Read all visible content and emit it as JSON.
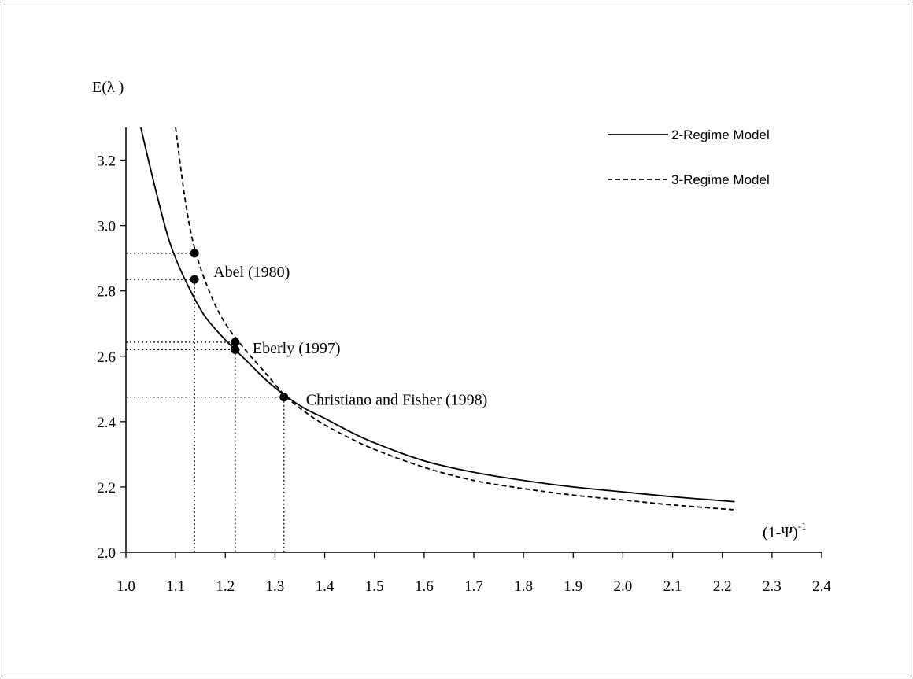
{
  "chart_data": {
    "type": "line",
    "title": "",
    "ylabel": "E(λ )",
    "xlabel_base": "(1-Ψ)",
    "xlabel_exp": "-1",
    "xlim": [
      1.0,
      2.4
    ],
    "ylim": [
      2.0,
      3.3
    ],
    "x_ticks": [
      "1.0",
      "1.1",
      "1.2",
      "1.3",
      "1.4",
      "1.5",
      "1.6",
      "1.7",
      "1.8",
      "1.9",
      "2.0",
      "2.1",
      "2.2",
      "2.3",
      "2.4"
    ],
    "y_ticks": [
      "2.0",
      "2.2",
      "2.4",
      "2.6",
      "2.8",
      "3.0",
      "3.2"
    ],
    "grid": false,
    "legend_position": "top-right",
    "series": [
      {
        "name": "2-Regime Model",
        "style": "solid",
        "x": [
          1.03,
          1.05,
          1.08,
          1.1,
          1.13,
          1.16,
          1.2,
          1.24,
          1.28,
          1.32,
          1.36,
          1.4,
          1.45,
          1.5,
          1.6,
          1.7,
          1.8,
          1.9,
          2.0,
          2.1,
          2.225
        ],
        "y": [
          3.3,
          3.17,
          2.99,
          2.9,
          2.8,
          2.72,
          2.65,
          2.59,
          2.53,
          2.48,
          2.44,
          2.41,
          2.37,
          2.335,
          2.28,
          2.245,
          2.22,
          2.2,
          2.185,
          2.17,
          2.155
        ]
      },
      {
        "name": "3-Regime Model",
        "style": "dashed",
        "x": [
          1.1,
          1.12,
          1.14,
          1.17,
          1.2,
          1.24,
          1.28,
          1.32,
          1.36,
          1.4,
          1.45,
          1.5,
          1.6,
          1.7,
          1.8,
          1.9,
          2.0,
          2.1,
          2.225
        ],
        "y": [
          3.3,
          3.07,
          2.92,
          2.79,
          2.7,
          2.62,
          2.55,
          2.48,
          2.43,
          2.39,
          2.35,
          2.315,
          2.26,
          2.22,
          2.195,
          2.175,
          2.16,
          2.145,
          2.13
        ]
      }
    ],
    "annotations": [
      {
        "label": "Abel (1980)",
        "points": [
          {
            "x": 1.138,
            "y": 2.915
          },
          {
            "x": 1.138,
            "y": 2.835
          }
        ]
      },
      {
        "label": "Eberly  (1997)",
        "points": [
          {
            "x": 1.22,
            "y": 2.643
          },
          {
            "x": 1.22,
            "y": 2.62
          }
        ]
      },
      {
        "label": "Christiano and Fisher (1998)",
        "points": [
          {
            "x": 1.318,
            "y": 2.475
          }
        ]
      }
    ],
    "colors": {
      "line": "#000000",
      "background": "#ffffff"
    }
  }
}
